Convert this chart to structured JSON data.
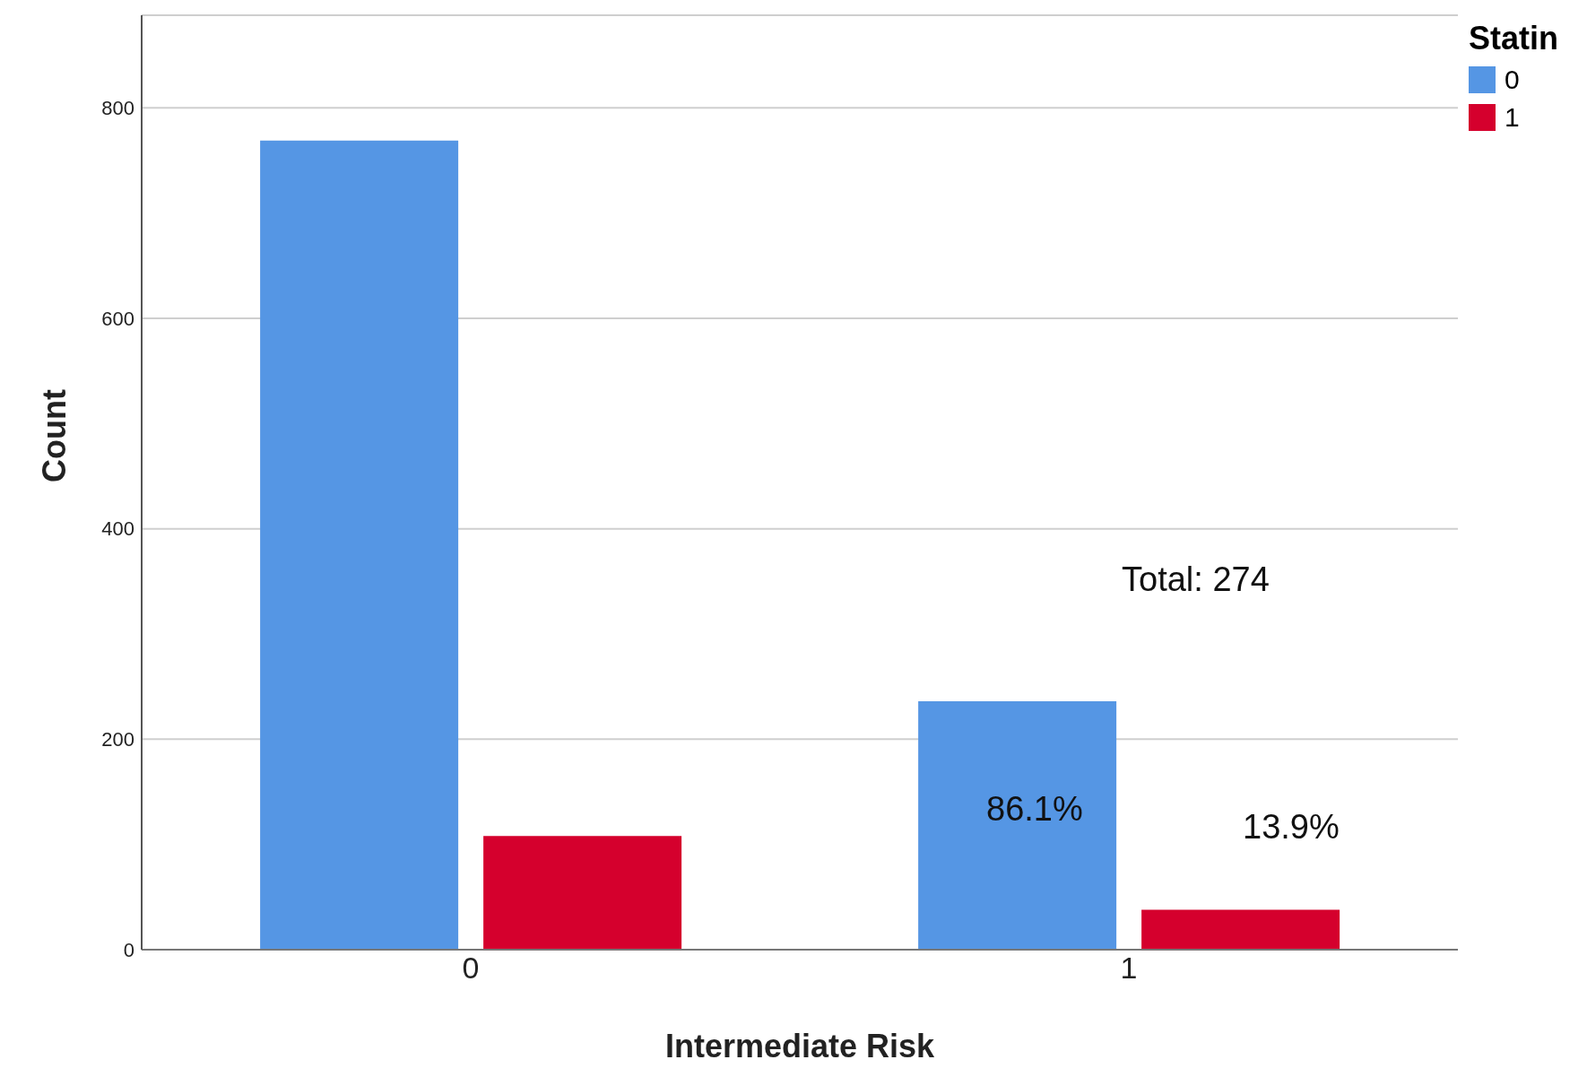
{
  "chart_data": {
    "type": "bar",
    "xlabel": "Intermediate Risk",
    "ylabel": "Count",
    "legend_title": "Statin",
    "categories": [
      "0",
      "1"
    ],
    "series": [
      {
        "name": "0",
        "color": "#5596e4",
        "values": [
          769,
          236
        ]
      },
      {
        "name": "1",
        "color": "#d5002d",
        "values": [
          108,
          38
        ]
      }
    ],
    "ylim": [
      0,
      888
    ],
    "yticks": [
      0,
      200,
      400,
      600,
      800
    ],
    "grid": "y",
    "legend": "top right",
    "annotations": [
      "Total: 274",
      "86.1%",
      "13.9%"
    ]
  }
}
